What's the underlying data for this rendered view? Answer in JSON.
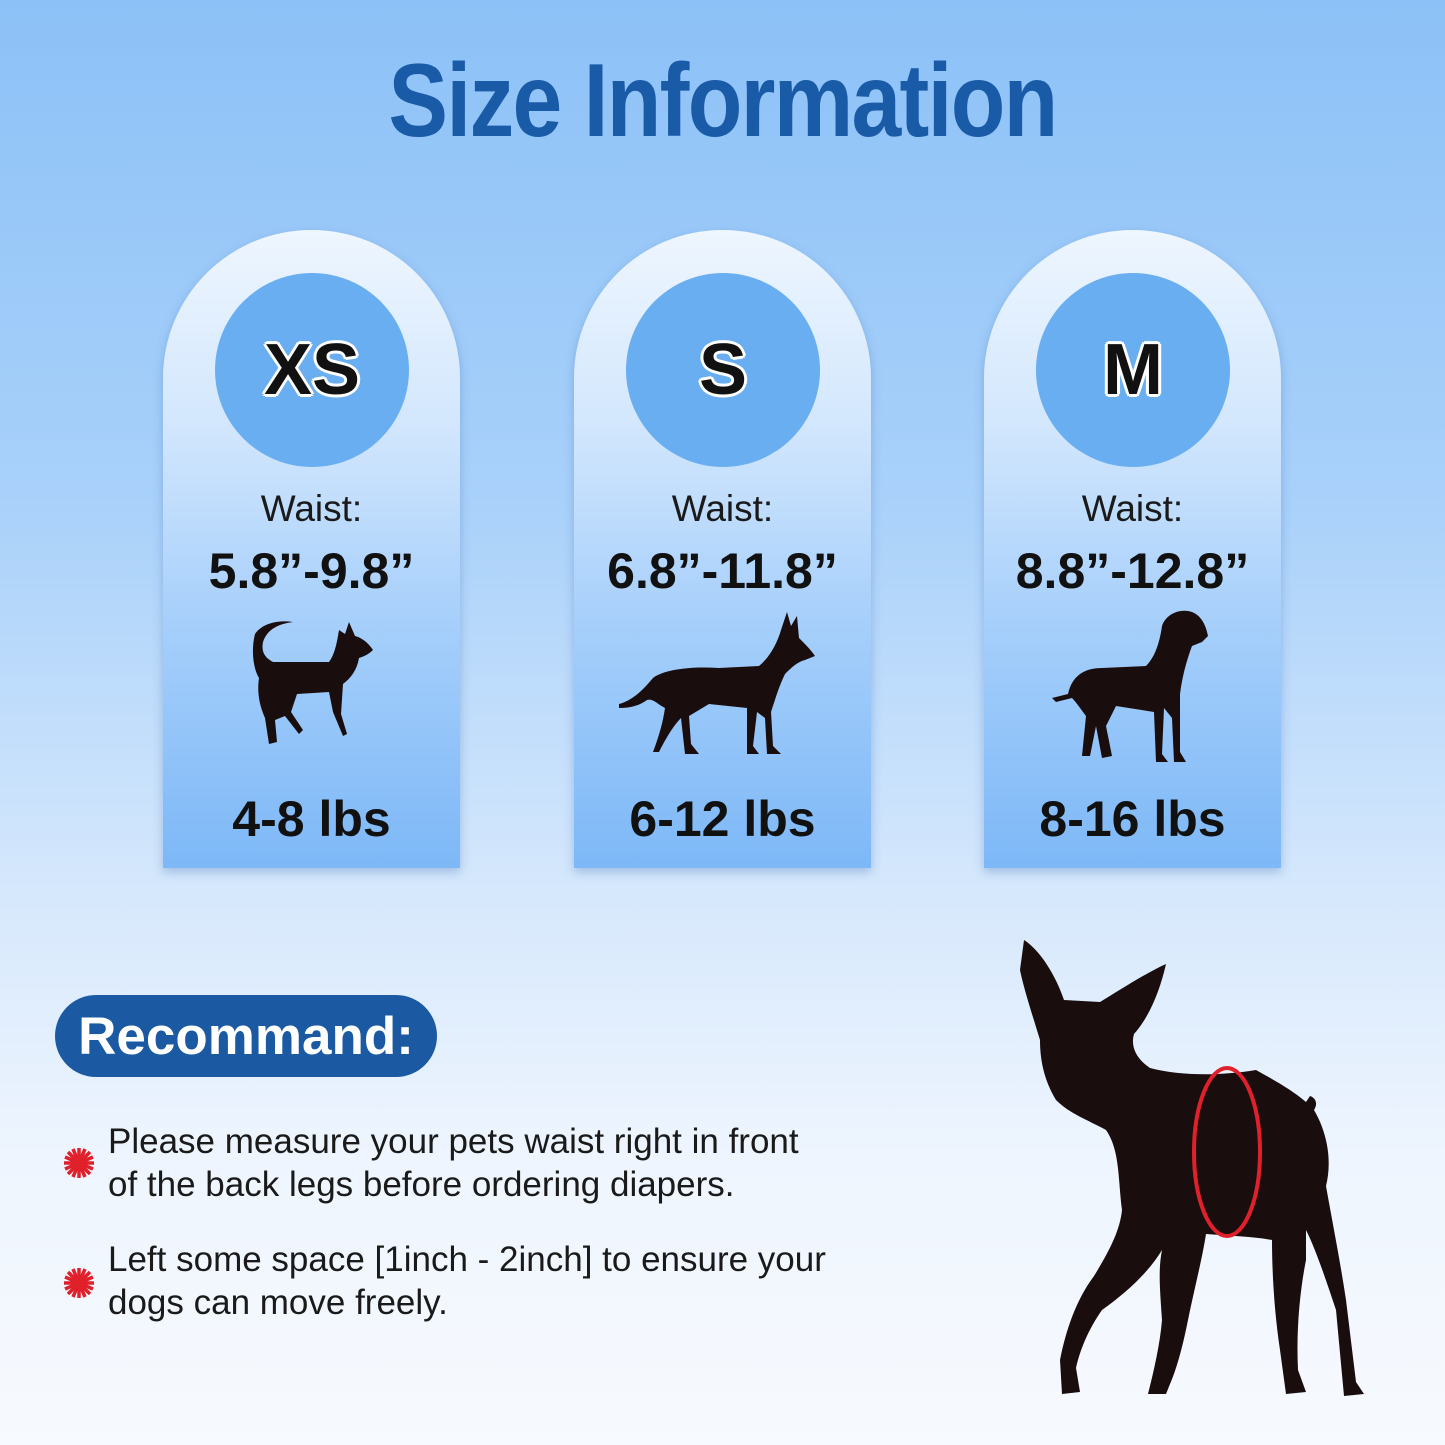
{
  "title": "Size Information",
  "sizes": [
    {
      "label": "XS",
      "waist_label": "Waist:",
      "waist": "5.8”-9.8”",
      "weight": "4-8 lbs",
      "icon": "chihuahua-silhouette-icon"
    },
    {
      "label": "S",
      "waist_label": "Waist:",
      "waist": "6.8”-11.8”",
      "weight": "6-12 lbs",
      "icon": "shepherd-silhouette-icon"
    },
    {
      "label": "M",
      "waist_label": "Waist:",
      "waist": "8.8”-12.8”",
      "weight": "8-16 lbs",
      "icon": "great-dane-silhouette-icon"
    }
  ],
  "recommend": {
    "heading": "Recommand:",
    "bullets": [
      {
        "line1": "Please measure your pets waist right in front",
        "line2": "of the back legs before ordering diapers."
      },
      {
        "line1": "Left some space [1inch - 2inch] to ensure your",
        "line2": "dogs can move freely."
      }
    ]
  },
  "colors": {
    "title": "#1a5ba8",
    "pill": "#1b5aa3",
    "circle": "#6aaef2",
    "bullet": "#e0202a",
    "waist_ring": "#e0202a"
  }
}
